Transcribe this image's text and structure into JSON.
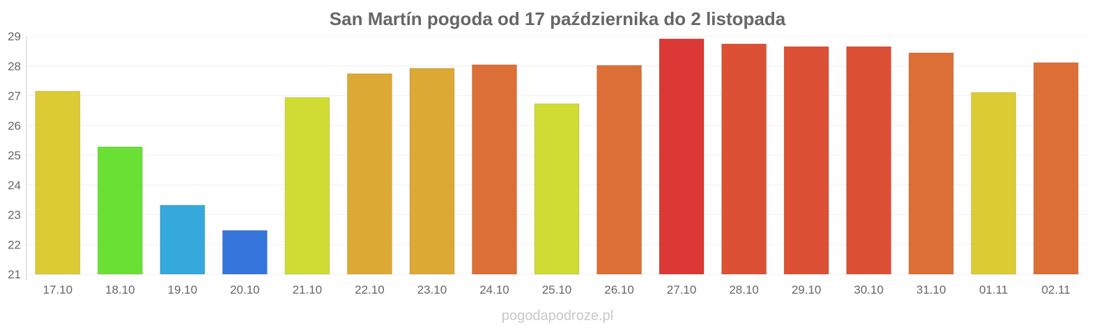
{
  "chart_data": {
    "type": "bar",
    "title": "San Martín pogoda od 17 października do 2 listopada",
    "xlabel": "",
    "ylabel": "",
    "ylim": [
      21,
      29
    ],
    "yticks": [
      21,
      22,
      23,
      24,
      25,
      26,
      27,
      28,
      29
    ],
    "grid": true,
    "categories": [
      "17.10",
      "18.10",
      "19.10",
      "20.10",
      "21.10",
      "22.10",
      "23.10",
      "24.10",
      "25.10",
      "26.10",
      "27.10",
      "28.10",
      "29.10",
      "30.10",
      "31.10",
      "01.11",
      "02.11"
    ],
    "values": [
      27.15,
      25.28,
      23.32,
      22.47,
      26.94,
      27.74,
      27.92,
      28.04,
      26.73,
      28.02,
      28.91,
      28.74,
      28.65,
      28.65,
      28.44,
      27.11,
      28.11
    ],
    "colors": [
      "#dccb33",
      "#6ae035",
      "#35a8dc",
      "#3575dc",
      "#d0dc33",
      "#dca935",
      "#dca935",
      "#dc6f35",
      "#d0dc33",
      "#dc6f35",
      "#dc3835",
      "#dc5035",
      "#dc5035",
      "#dc5035",
      "#dc6f35",
      "#dccb33",
      "#dc6f35"
    ]
  },
  "credit": "pogodapodroze.pl"
}
